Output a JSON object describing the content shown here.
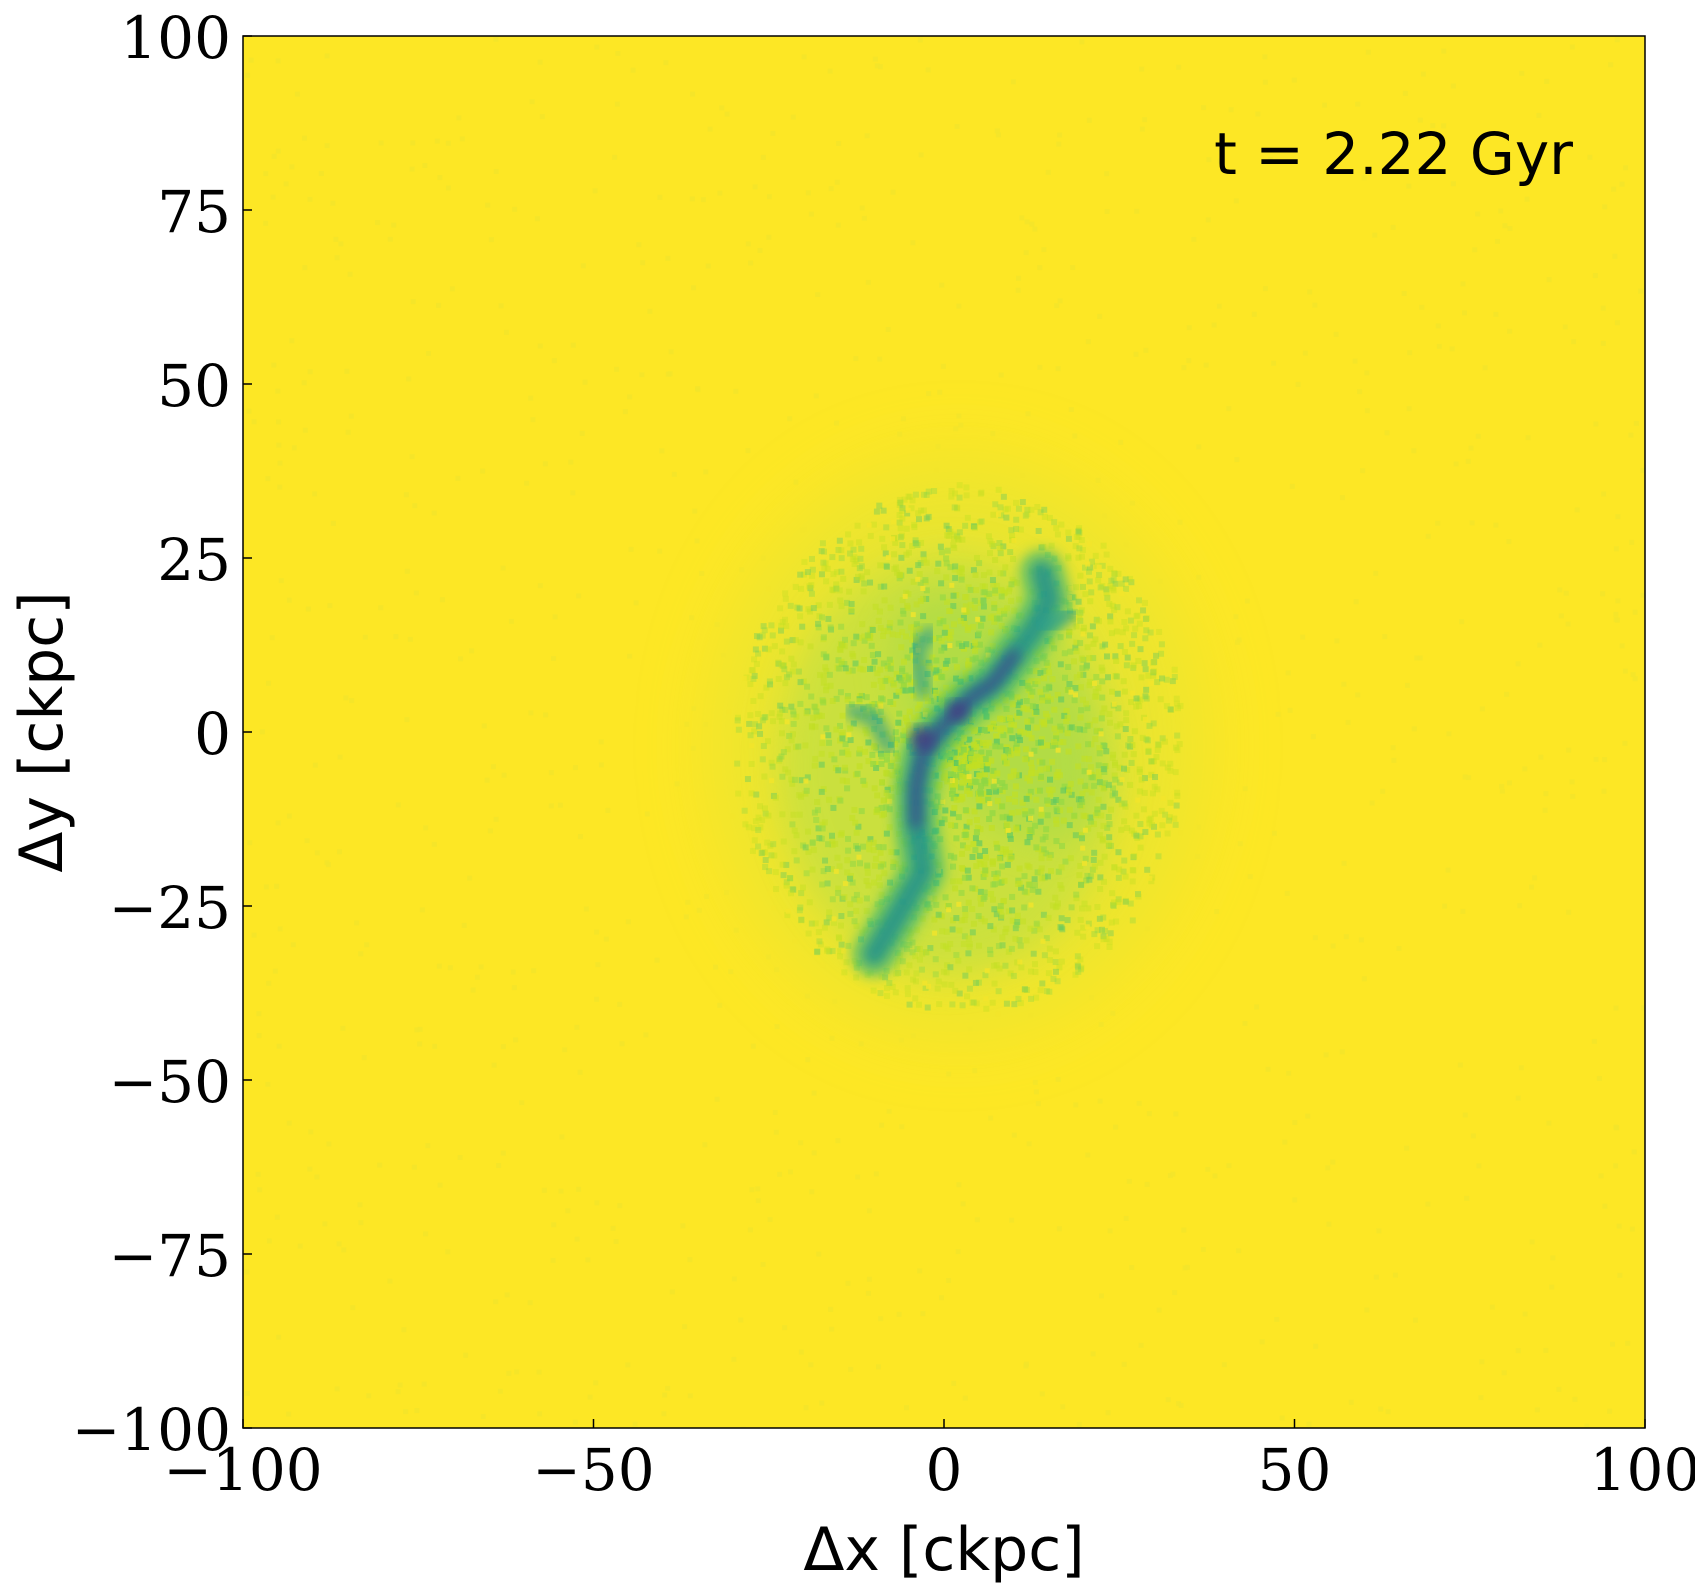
{
  "chart_data": {
    "type": "heatmap",
    "title": "",
    "xlabel": "Δx [ckpc]",
    "ylabel": "Δy [ckpc]",
    "xlim": [
      -100,
      100
    ],
    "ylim": [
      -100,
      100
    ],
    "x_ticks": [
      -100,
      -50,
      0,
      50,
      100
    ],
    "y_ticks": [
      -100,
      -75,
      -50,
      -25,
      0,
      25,
      50,
      75,
      100
    ],
    "x_tick_labels": [
      "−100",
      "−50",
      "0",
      "50",
      "100"
    ],
    "y_tick_labels": [
      "−100",
      "−75",
      "−50",
      "−25",
      "0",
      "25",
      "50",
      "75",
      "100"
    ],
    "annotation": "t = 2.22 Gyr",
    "annotation_position": "top-right",
    "colormap": "viridis",
    "background_color": "#fde725",
    "grid": false,
    "legend": false,
    "structure": {
      "description_hidden": true,
      "halo_center": [
        2,
        -2
      ],
      "filament_path": [
        [
          -10,
          -32
        ],
        [
          -7,
          -27
        ],
        [
          -3,
          -20
        ],
        [
          -4,
          -13
        ],
        [
          -4,
          -8
        ],
        [
          -3,
          -3
        ],
        [
          0,
          1
        ],
        [
          4,
          5
        ],
        [
          7,
          7
        ],
        [
          10,
          11
        ],
        [
          13,
          15
        ],
        [
          15,
          19
        ],
        [
          14,
          23
        ]
      ],
      "branches": [
        [
          [
            -3,
            6
          ],
          [
            -4,
            12
          ],
          [
            -2,
            14
          ]
        ],
        [
          [
            -8,
            -2
          ],
          [
            -10,
            2
          ],
          [
            -13,
            3
          ]
        ],
        [
          [
            14,
            15
          ],
          [
            18,
            17
          ]
        ]
      ]
    }
  }
}
